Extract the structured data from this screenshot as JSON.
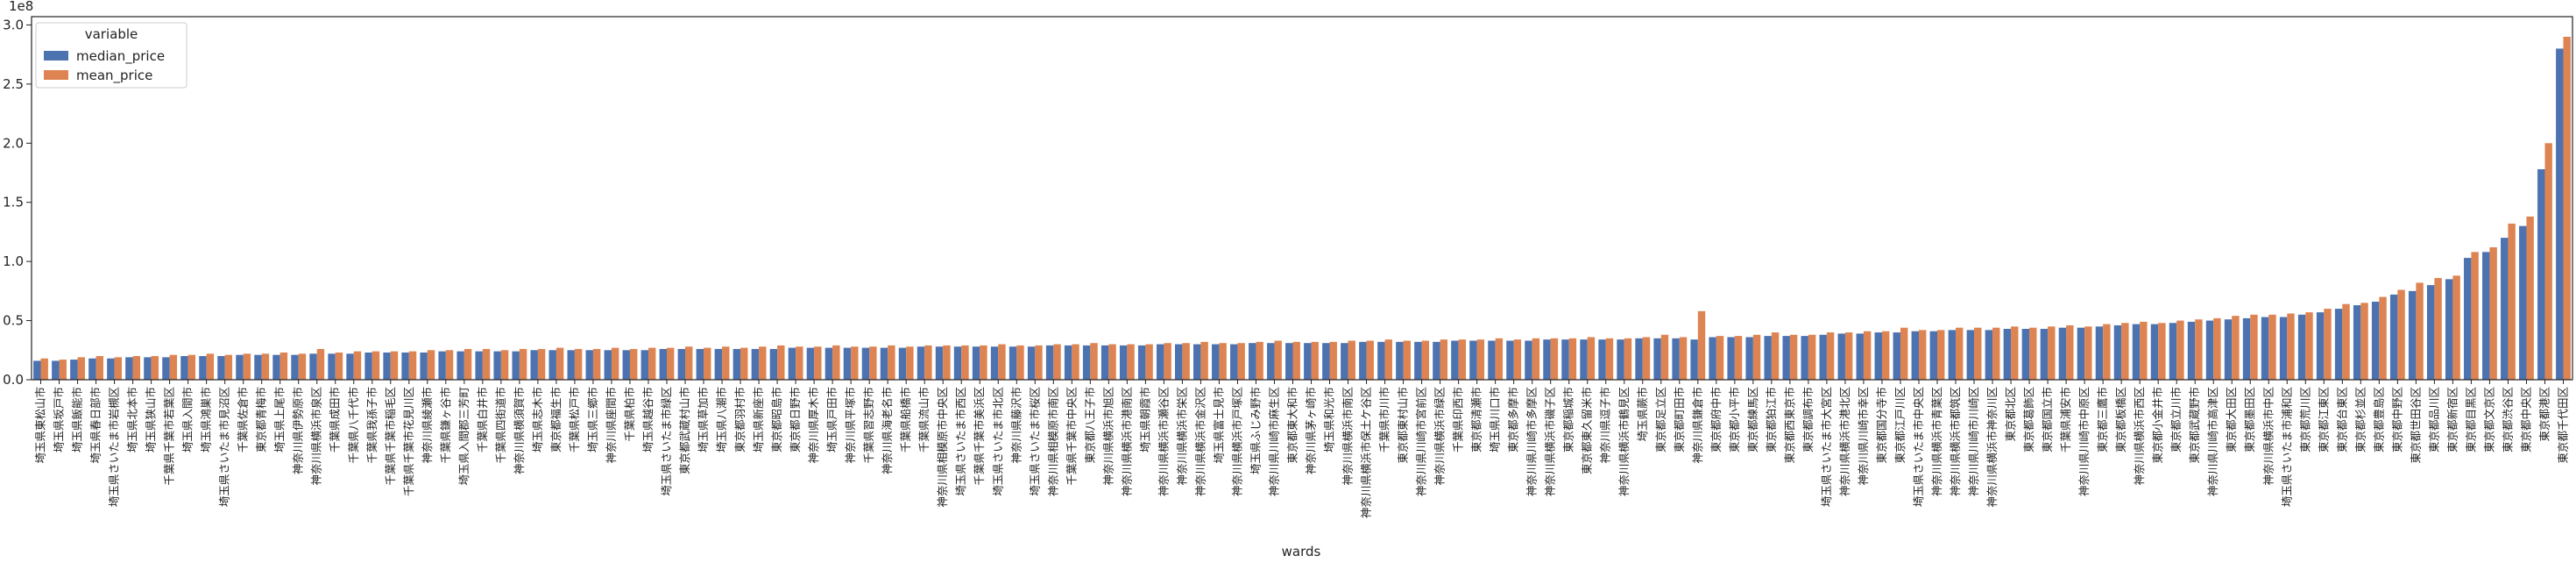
{
  "chart_data": {
    "type": "bar",
    "x_label": "wards",
    "y_offset_label": "1e8",
    "legend_title": "variable",
    "legend_position": "upper left",
    "ylim": [
      0,
      3.07
    ],
    "yticks": [
      {
        "value": 0,
        "label": "0.0"
      },
      0.5,
      {
        "value": 1,
        "label": "1.0"
      },
      1.5,
      {
        "value": 2,
        "label": "2.0"
      },
      2.5,
      {
        "value": 3,
        "label": "3.0"
      }
    ],
    "categories": [
      "埼玉県東松山市",
      "埼玉県坂戸市",
      "埼玉県飯能市",
      "埼玉県春日部市",
      "埼玉県さいたま市岩槻区",
      "埼玉県北本市",
      "埼玉県狭山市",
      "千葉県千葉市若葉区",
      "埼玉県入間市",
      "埼玉県鴻巣市",
      "埼玉県さいたま市見沼区",
      "千葉県佐倉市",
      "東京都青梅市",
      "埼玉県上尾市",
      "神奈川県伊勢原市",
      "神奈川県横浜市泉区",
      "千葉県成田市",
      "千葉県八千代市",
      "千葉県我孫子市",
      "千葉県千葉市稲毛区",
      "千葉県千葉市花見川区",
      "神奈川県綾瀬市",
      "千葉県鎌ヶ谷市",
      "埼玉県入間郡三芳町",
      "千葉県白井市",
      "千葉県四街道市",
      "神奈川県横須賀市",
      "埼玉県志木市",
      "東京都福生市",
      "千葉県松戸市",
      "埼玉県三郷市",
      "神奈川県座間市",
      "千葉県柏市",
      "埼玉県越谷市",
      "埼玉県さいたま市緑区",
      "東京都武蔵村山市",
      "埼玉県草加市",
      "埼玉県八潮市",
      "東京都羽村市",
      "埼玉県新座市",
      "東京都昭島市",
      "東京都日野市",
      "神奈川県厚木市",
      "埼玉県戸田市",
      "神奈川県平塚市",
      "千葉県習志野市",
      "神奈川県海老名市",
      "千葉県船橋市",
      "千葉県流山市",
      "神奈川県相模原市中央区",
      "埼玉県さいたま市西区",
      "千葉県千葉市美浜区",
      "埼玉県さいたま市北区",
      "神奈川県藤沢市",
      "埼玉県さいたま市桜区",
      "神奈川県相模原市南区",
      "千葉県千葉市中央区",
      "東京都八王子市",
      "神奈川県横浜市旭区",
      "神奈川県横浜市港南区",
      "埼玉県朝霞市",
      "神奈川県横浜市瀬谷区",
      "神奈川県横浜市栄区",
      "神奈川県横浜市金沢区",
      "埼玉県富士見市",
      "神奈川県横浜市戸塚区",
      "埼玉県ふじみ野市",
      "神奈川県川崎市麻生区",
      "東京都東大和市",
      "神奈川県茅ヶ崎市",
      "埼玉県和光市",
      "神奈川県横浜市南区",
      "神奈川県横浜市保土ケ谷区",
      "千葉県市川市",
      "東京都東村山市",
      "神奈川県川崎市宮前区",
      "神奈川県横浜市緑区",
      "千葉県印西市",
      "東京都清瀬市",
      "埼玉県川口市",
      "東京都多摩市",
      "神奈川県川崎市多摩区",
      "神奈川県横浜市磯子区",
      "東京都稲城市",
      "東京都東久留米市",
      "神奈川県逗子市",
      "神奈川県横浜市鶴見区",
      "埼玉県蕨市",
      "東京都足立区",
      "東京都町田市",
      "神奈川県鎌倉市",
      "東京都府中市",
      "東京都小平市",
      "東京都練馬区",
      "東京都狛江市",
      "東京都西東京市",
      "東京都調布市",
      "埼玉県さいたま市大宮区",
      "神奈川県横浜市港北区",
      "神奈川県川崎市幸区",
      "東京都国分寺市",
      "東京都江戸川区",
      "埼玉県さいたま市中央区",
      "神奈川県横浜市青葉区",
      "神奈川県横浜市都筑区",
      "神奈川県川崎市川崎区",
      "神奈川県横浜市神奈川区",
      "東京都北区",
      "東京都葛飾区",
      "東京都国立市",
      "千葉県浦安市",
      "神奈川県川崎市中原区",
      "東京都三鷹市",
      "東京都板橋区",
      "神奈川県横浜市西区",
      "東京都小金井市",
      "東京都立川市",
      "東京都武蔵野市",
      "神奈川県川崎市高津区",
      "東京都大田区",
      "東京都墨田区",
      "神奈川県横浜市中区",
      "埼玉県さいたま市浦和区",
      "東京都荒川区",
      "東京都江東区",
      "東京都台東区",
      "東京都杉並区",
      "東京都豊島区",
      "東京都中野区",
      "東京都世田谷区",
      "東京都品川区",
      "東京都新宿区",
      "東京都目黒区",
      "東京都文京区",
      "東京都渋谷区",
      "東京都中央区",
      "東京都港区",
      "東京都千代田区"
    ],
    "series": [
      {
        "name": "median_price",
        "color": "#4c72b0",
        "values": [
          0.16,
          0.16,
          0.17,
          0.18,
          0.18,
          0.19,
          0.19,
          0.19,
          0.2,
          0.2,
          0.2,
          0.21,
          0.21,
          0.21,
          0.21,
          0.22,
          0.22,
          0.22,
          0.23,
          0.23,
          0.23,
          0.23,
          0.24,
          0.24,
          0.24,
          0.24,
          0.24,
          0.25,
          0.25,
          0.25,
          0.25,
          0.25,
          0.25,
          0.25,
          0.26,
          0.26,
          0.26,
          0.26,
          0.26,
          0.26,
          0.26,
          0.27,
          0.27,
          0.27,
          0.27,
          0.27,
          0.27,
          0.27,
          0.28,
          0.28,
          0.28,
          0.28,
          0.28,
          0.28,
          0.28,
          0.29,
          0.29,
          0.29,
          0.29,
          0.29,
          0.29,
          0.3,
          0.3,
          0.3,
          0.3,
          0.3,
          0.31,
          0.31,
          0.31,
          0.31,
          0.31,
          0.31,
          0.32,
          0.32,
          0.32,
          0.32,
          0.32,
          0.33,
          0.33,
          0.33,
          0.33,
          0.33,
          0.34,
          0.34,
          0.34,
          0.34,
          0.34,
          0.35,
          0.35,
          0.35,
          0.34,
          0.36,
          0.36,
          0.36,
          0.37,
          0.37,
          0.37,
          0.38,
          0.39,
          0.39,
          0.4,
          0.4,
          0.41,
          0.41,
          0.42,
          0.42,
          0.42,
          0.43,
          0.43,
          0.43,
          0.44,
          0.44,
          0.45,
          0.46,
          0.47,
          0.47,
          0.48,
          0.49,
          0.5,
          0.51,
          0.52,
          0.53,
          0.53,
          0.55,
          0.57,
          0.6,
          0.63,
          0.66,
          0.72,
          0.75,
          0.8,
          0.85,
          1.03,
          1.08,
          1.2,
          1.3,
          1.78,
          2.8
        ]
      },
      {
        "name": "mean_price",
        "color": "#dd8452",
        "values": [
          0.18,
          0.17,
          0.19,
          0.2,
          0.19,
          0.2,
          0.2,
          0.21,
          0.21,
          0.22,
          0.21,
          0.22,
          0.22,
          0.23,
          0.22,
          0.26,
          0.23,
          0.24,
          0.24,
          0.24,
          0.24,
          0.25,
          0.25,
          0.26,
          0.26,
          0.25,
          0.26,
          0.26,
          0.27,
          0.26,
          0.26,
          0.27,
          0.26,
          0.27,
          0.27,
          0.28,
          0.27,
          0.28,
          0.27,
          0.28,
          0.29,
          0.28,
          0.28,
          0.29,
          0.28,
          0.28,
          0.29,
          0.28,
          0.29,
          0.29,
          0.29,
          0.29,
          0.3,
          0.29,
          0.29,
          0.3,
          0.3,
          0.31,
          0.3,
          0.3,
          0.3,
          0.31,
          0.31,
          0.32,
          0.31,
          0.31,
          0.32,
          0.33,
          0.32,
          0.32,
          0.32,
          0.33,
          0.33,
          0.34,
          0.33,
          0.33,
          0.34,
          0.34,
          0.34,
          0.35,
          0.34,
          0.35,
          0.35,
          0.35,
          0.36,
          0.35,
          0.35,
          0.36,
          0.38,
          0.36,
          0.58,
          0.37,
          0.37,
          0.38,
          0.4,
          0.38,
          0.38,
          0.4,
          0.4,
          0.41,
          0.41,
          0.44,
          0.42,
          0.42,
          0.44,
          0.44,
          0.44,
          0.45,
          0.44,
          0.45,
          0.46,
          0.45,
          0.47,
          0.48,
          0.49,
          0.48,
          0.5,
          0.51,
          0.52,
          0.54,
          0.55,
          0.55,
          0.56,
          0.57,
          0.6,
          0.64,
          0.65,
          0.7,
          0.76,
          0.82,
          0.86,
          0.88,
          1.08,
          1.12,
          1.32,
          1.38,
          2.0,
          2.9
        ]
      }
    ]
  }
}
